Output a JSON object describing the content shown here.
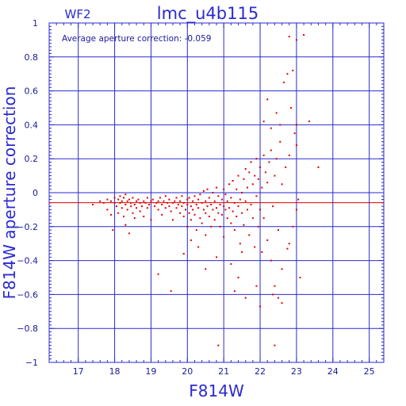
{
  "colors": {
    "axis": "#2a2ad0",
    "grid": "#2a2ad0",
    "points": "#e00000",
    "mean_line": "#e00000",
    "text": "#2a2ad0"
  },
  "labels": {
    "chip": "WF2",
    "title": "lmc_u4b115",
    "annotation": "Average aperture correction: -0.059",
    "xlabel": "F814W",
    "ylabel": "F814W aperture correction"
  },
  "chart_data": {
    "type": "scatter",
    "title": "lmc_u4b115",
    "xlabel": "F814W",
    "ylabel": "F814W aperture correction",
    "xlim": [
      16.2,
      25.4
    ],
    "ylim": [
      -1,
      1
    ],
    "xticks": [
      17,
      18,
      19,
      20,
      21,
      22,
      23,
      24,
      25
    ],
    "yticks": [
      -1,
      -0.8,
      -0.6,
      -0.4,
      -0.2,
      0,
      0.2,
      0.4,
      0.6,
      0.8,
      1
    ],
    "ytick_labels": [
      "−1",
      "−0.8",
      "−0.6",
      "−0.4",
      "−0.2",
      "0",
      "0.2",
      "0.4",
      "0.6",
      "0.8",
      "1"
    ],
    "grid": true,
    "mean_correction": -0.059,
    "points": [
      [
        17.4,
        -0.07
      ],
      [
        17.6,
        -0.05
      ],
      [
        17.7,
        -0.06
      ],
      [
        17.8,
        -0.04
      ],
      [
        17.8,
        -0.1
      ],
      [
        17.9,
        -0.05
      ],
      [
        17.9,
        -0.13
      ],
      [
        17.95,
        -0.22
      ],
      [
        18.0,
        -0.06
      ],
      [
        18.0,
        -0.03
      ],
      [
        18.05,
        -0.08
      ],
      [
        18.1,
        -0.04
      ],
      [
        18.1,
        -0.12
      ],
      [
        18.15,
        -0.06
      ],
      [
        18.15,
        -0.02
      ],
      [
        18.2,
        -0.09
      ],
      [
        18.2,
        -0.05
      ],
      [
        18.25,
        -0.03
      ],
      [
        18.25,
        -0.14
      ],
      [
        18.3,
        -0.07
      ],
      [
        18.3,
        -0.01
      ],
      [
        18.3,
        -0.19
      ],
      [
        18.35,
        -0.05
      ],
      [
        18.35,
        -0.1
      ],
      [
        18.4,
        -0.04
      ],
      [
        18.4,
        -0.24
      ],
      [
        18.45,
        -0.08
      ],
      [
        18.45,
        -0.06
      ],
      [
        18.5,
        -0.03
      ],
      [
        18.5,
        -0.12
      ],
      [
        18.55,
        -0.07
      ],
      [
        18.55,
        -0.15
      ],
      [
        18.6,
        -0.05
      ],
      [
        18.6,
        -0.09
      ],
      [
        18.65,
        -0.04
      ],
      [
        18.7,
        -0.06
      ],
      [
        18.7,
        -0.11
      ],
      [
        18.75,
        -0.08
      ],
      [
        18.8,
        -0.05
      ],
      [
        18.8,
        -0.14
      ],
      [
        18.85,
        -0.06
      ],
      [
        18.9,
        -0.03
      ],
      [
        18.9,
        -0.09
      ],
      [
        18.95,
        -0.07
      ],
      [
        19.0,
        -0.05
      ],
      [
        19.0,
        -0.16
      ],
      [
        19.05,
        -0.04
      ],
      [
        19.1,
        -0.08
      ],
      [
        19.15,
        -0.06
      ],
      [
        19.2,
        -0.05
      ],
      [
        19.2,
        -0.1
      ],
      [
        19.25,
        -0.03
      ],
      [
        19.3,
        -0.07
      ],
      [
        19.3,
        -0.13
      ],
      [
        19.35,
        -0.05
      ],
      [
        19.4,
        -0.09
      ],
      [
        19.4,
        -0.02
      ],
      [
        19.45,
        -0.06
      ],
      [
        19.5,
        -0.08
      ],
      [
        19.5,
        -0.04
      ],
      [
        19.55,
        -0.11
      ],
      [
        19.6,
        -0.06
      ],
      [
        19.6,
        -0.16
      ],
      [
        19.65,
        -0.05
      ],
      [
        19.7,
        -0.09
      ],
      [
        19.7,
        -0.03
      ],
      [
        19.75,
        -0.07
      ],
      [
        19.8,
        -0.12
      ],
      [
        19.8,
        -0.05
      ],
      [
        19.85,
        -0.08
      ],
      [
        19.85,
        -0.02
      ],
      [
        19.9,
        -0.06
      ],
      [
        19.9,
        -0.14
      ],
      [
        19.95,
        -0.1
      ],
      [
        20.0,
        -0.04
      ],
      [
        20.0,
        -0.07
      ],
      [
        20.0,
        -0.2
      ],
      [
        20.05,
        -0.12
      ],
      [
        20.05,
        -0.03
      ],
      [
        20.1,
        -0.08
      ],
      [
        20.1,
        -0.16
      ],
      [
        20.15,
        -0.05
      ],
      [
        20.15,
        -0.1
      ],
      [
        20.2,
        -0.02
      ],
      [
        20.2,
        -0.13
      ],
      [
        20.25,
        -0.07
      ],
      [
        20.25,
        -0.22
      ],
      [
        20.3,
        -0.04
      ],
      [
        20.3,
        -0.09
      ],
      [
        20.35,
        -0.15
      ],
      [
        20.35,
        -0.01
      ],
      [
        20.4,
        -0.06
      ],
      [
        20.4,
        -0.18
      ],
      [
        20.45,
        -0.1
      ],
      [
        20.45,
        0.01
      ],
      [
        20.5,
        -0.05
      ],
      [
        20.5,
        -0.12
      ],
      [
        20.5,
        -0.25
      ],
      [
        20.55,
        -0.08
      ],
      [
        20.55,
        0.02
      ],
      [
        20.6,
        -0.03
      ],
      [
        20.6,
        -0.14
      ],
      [
        20.65,
        -0.07
      ],
      [
        20.65,
        -0.2
      ],
      [
        20.7,
        -0.1
      ],
      [
        20.7,
        0.0
      ],
      [
        20.75,
        -0.05
      ],
      [
        20.75,
        -0.16
      ],
      [
        20.8,
        -0.09
      ],
      [
        20.8,
        0.03
      ],
      [
        20.85,
        -0.12
      ],
      [
        20.85,
        -0.02
      ],
      [
        20.9,
        -0.07
      ],
      [
        20.9,
        -0.2
      ],
      [
        20.95,
        -0.04
      ],
      [
        20.95,
        -0.13
      ],
      [
        21.0,
        -0.08
      ],
      [
        21.0,
        0.02
      ],
      [
        21.0,
        -0.26
      ],
      [
        21.05,
        -0.1
      ],
      [
        21.05,
        -0.01
      ],
      [
        21.1,
        -0.15
      ],
      [
        21.1,
        -0.05
      ],
      [
        21.15,
        -0.09
      ],
      [
        21.15,
        0.05
      ],
      [
        21.2,
        -0.18
      ],
      [
        21.2,
        -0.03
      ],
      [
        21.25,
        -0.11
      ],
      [
        21.25,
        0.07
      ],
      [
        21.3,
        -0.06
      ],
      [
        21.3,
        -0.22
      ],
      [
        21.35,
        0.02
      ],
      [
        21.35,
        -0.14
      ],
      [
        21.4,
        -0.08
      ],
      [
        21.4,
        0.1
      ],
      [
        21.45,
        -0.04
      ],
      [
        21.45,
        -0.3
      ],
      [
        21.5,
        0.0
      ],
      [
        21.5,
        -0.12
      ],
      [
        21.55,
        0.08
      ],
      [
        21.55,
        -0.19
      ],
      [
        21.6,
        -0.05
      ],
      [
        21.6,
        0.14
      ],
      [
        21.65,
        -0.1
      ],
      [
        21.65,
        0.03
      ],
      [
        21.7,
        -0.25
      ],
      [
        21.7,
        0.12
      ],
      [
        21.75,
        -0.07
      ],
      [
        21.75,
        0.18
      ],
      [
        21.8,
        -0.15
      ],
      [
        21.8,
        0.05
      ],
      [
        21.85,
        -0.32
      ],
      [
        21.85,
        0.1
      ],
      [
        21.9,
        -0.02
      ],
      [
        21.9,
        0.2
      ],
      [
        21.95,
        -0.2
      ],
      [
        21.95,
        0.08
      ],
      [
        22.0,
        -0.1
      ],
      [
        22.0,
        0.15
      ],
      [
        22.05,
        -0.35
      ],
      [
        22.05,
        0.03
      ],
      [
        22.1,
        0.22
      ],
      [
        22.1,
        -0.15
      ],
      [
        22.15,
        0.12
      ],
      [
        22.2,
        -0.28
      ],
      [
        22.2,
        0.06
      ],
      [
        22.25,
        0.18
      ],
      [
        22.3,
        -0.4
      ],
      [
        22.3,
        0.25
      ],
      [
        22.35,
        -0.08
      ],
      [
        22.4,
        0.1
      ],
      [
        22.4,
        -0.55
      ],
      [
        22.45,
        0.2
      ],
      [
        22.5,
        -0.22
      ],
      [
        22.55,
        0.3
      ],
      [
        22.6,
        -0.45
      ],
      [
        22.6,
        0.05
      ],
      [
        22.7,
        0.15
      ],
      [
        22.75,
        -0.33
      ],
      [
        22.8,
        0.22
      ],
      [
        22.85,
        0.5
      ],
      [
        22.9,
        -0.2
      ],
      [
        23.0,
        0.4
      ],
      [
        23.1,
        -0.5
      ],
      [
        22.1,
        0.42
      ],
      [
        22.2,
        0.55
      ],
      [
        22.3,
        0.38
      ],
      [
        22.45,
        0.47
      ],
      [
        22.55,
        0.4
      ],
      [
        22.65,
        0.65
      ],
      [
        22.75,
        0.7
      ],
      [
        22.9,
        0.72
      ],
      [
        22.8,
        0.92
      ],
      [
        23.0,
        0.9
      ],
      [
        23.2,
        0.93
      ],
      [
        23.35,
        0.42
      ],
      [
        23.6,
        0.15
      ],
      [
        19.2,
        -0.48
      ],
      [
        19.55,
        -0.58
      ],
      [
        20.3,
        -0.32
      ],
      [
        20.5,
        -0.45
      ],
      [
        20.8,
        -0.38
      ],
      [
        21.2,
        -0.42
      ],
      [
        21.4,
        -0.5
      ],
      [
        21.6,
        -0.62
      ],
      [
        21.9,
        -0.55
      ],
      [
        22.0,
        -0.67
      ],
      [
        22.35,
        -0.6
      ],
      [
        22.5,
        -0.62
      ],
      [
        22.6,
        -0.65
      ],
      [
        22.4,
        -0.9
      ],
      [
        20.85,
        -0.9
      ],
      [
        21.5,
        -0.35
      ],
      [
        20.1,
        -0.28
      ],
      [
        19.9,
        -0.36
      ],
      [
        21.3,
        -0.58
      ],
      [
        22.8,
        -0.3
      ],
      [
        23.0,
        -0.1
      ],
      [
        23.05,
        -0.04
      ],
      [
        22.95,
        0.35
      ],
      [
        23.0,
        0.28
      ]
    ]
  }
}
